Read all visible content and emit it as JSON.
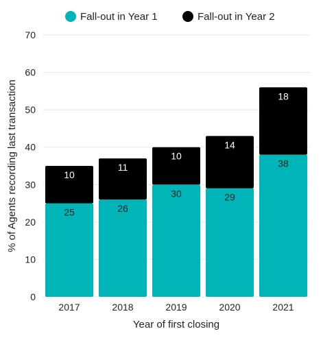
{
  "chart_data": {
    "type": "bar",
    "stacked": true,
    "title": "",
    "xlabel": "Year of first closing",
    "ylabel": "% of Agents recording last transaction",
    "categories": [
      "2017",
      "2018",
      "2019",
      "2020",
      "2021"
    ],
    "series": [
      {
        "name": "Fall-out in Year 1",
        "values": [
          25,
          26,
          30,
          29,
          38
        ],
        "color": "#00b5b8",
        "label_color": "#222222"
      },
      {
        "name": "Fall-out in Year 2",
        "values": [
          10,
          11,
          10,
          14,
          18
        ],
        "color": "#000000",
        "label_color": "#ffffff"
      }
    ],
    "ylim": [
      0,
      70
    ],
    "yticks": [
      "0",
      "10",
      "20",
      "30",
      "40",
      "50",
      "60",
      "70"
    ],
    "grid": true,
    "legend_position": "top"
  }
}
